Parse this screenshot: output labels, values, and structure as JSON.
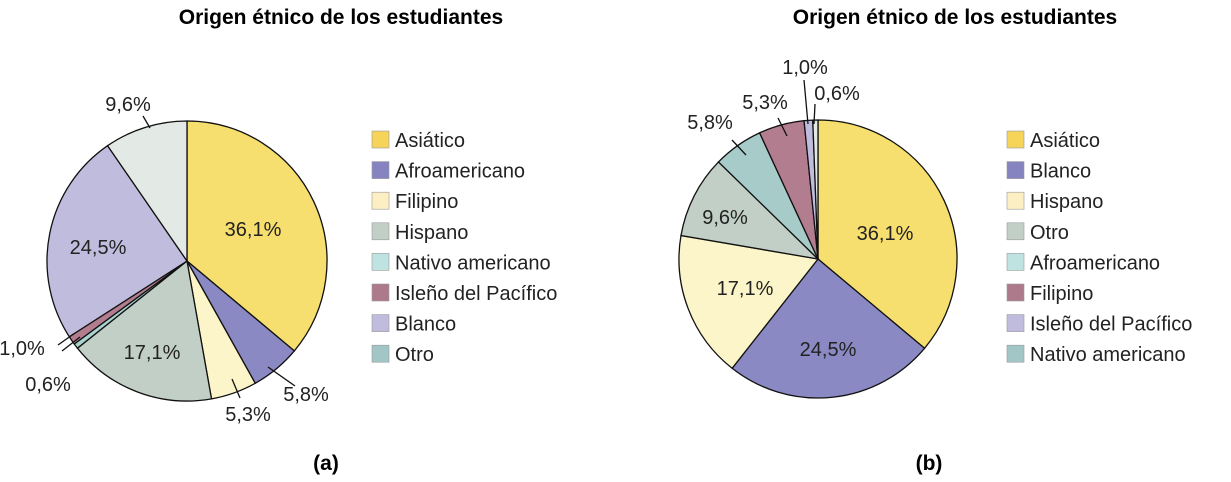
{
  "chart_data": [
    {
      "type": "pie",
      "title": "Origen étnico de los estudiantes",
      "caption": "(a)",
      "categories": [
        "Asiático",
        "Afroamericano",
        "Filipino",
        "Hispano",
        "Nativo americano",
        "Isleño del Pacífico",
        "Blanco",
        "Otro"
      ],
      "values": [
        36.1,
        5.8,
        5.3,
        17.1,
        0.6,
        1.0,
        24.5,
        9.6
      ],
      "value_labels": [
        "36,1%",
        "5,8%",
        "5,3%",
        "17,1%",
        "0,6%",
        "1,0%",
        "24,5%",
        "9,6%"
      ],
      "slice_colors": [
        "#f6df6e",
        "#8b89c3",
        "#fbf5c9",
        "#c2cfc7",
        "#a9d3cf",
        "#b17d8f",
        "#c0bcdd",
        "#e3e9e5"
      ],
      "legend_colors": [
        "#f6d45a",
        "#8583c0",
        "#fcefc4",
        "#c2cfc7",
        "#bfe3e0",
        "#ad7a8c",
        "#c0bcdd",
        "#a2c6c5"
      ],
      "legend_placement": "right"
    },
    {
      "type": "pie",
      "title": "Origen étnico de los estudiantes",
      "caption": "(b)",
      "categories": [
        "Asiático",
        "Blanco",
        "Hispano",
        "Otro",
        "Afroamericano",
        "Filipino",
        "Isleño del Pacífico",
        "Nativo americano"
      ],
      "values": [
        36.1,
        24.5,
        17.1,
        9.6,
        5.8,
        5.3,
        1.0,
        0.6
      ],
      "value_labels": [
        "36,1%",
        "24,5%",
        "17,1%",
        "9,6%",
        "5,8%",
        "5,3%",
        "1,0%",
        "0,6%"
      ],
      "slice_colors": [
        "#f6df6e",
        "#8b89c3",
        "#fbf5c9",
        "#c2cfc7",
        "#a6cbc9",
        "#b17d8f",
        "#c0bcdd",
        "#e3e9e5"
      ],
      "legend_colors": [
        "#f6d45a",
        "#8583c0",
        "#fcefc4",
        "#c2cfc7",
        "#bfe3e0",
        "#ad7a8c",
        "#c0bcdd",
        "#a2c6c5"
      ],
      "legend_placement": "right"
    }
  ]
}
